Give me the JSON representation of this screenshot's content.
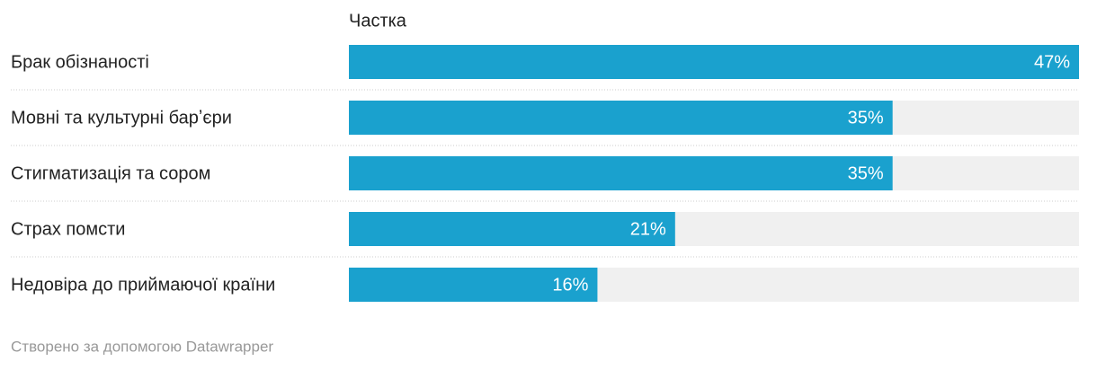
{
  "chart_data": {
    "type": "bar",
    "orientation": "horizontal",
    "column_header": "Частка",
    "categories": [
      "Брак обізнаності",
      "Мовні та культурні барʼєри",
      "Стигматизація та сором",
      "Страх помсти",
      "Недовіра до приймаючої країни"
    ],
    "values": [
      47,
      35,
      35,
      21,
      16
    ],
    "value_labels": [
      "47%",
      "35%",
      "35%",
      "21%",
      "16%"
    ],
    "color": "#1aa1ce",
    "xlim": [
      0,
      47
    ],
    "footer": "Створено за допомогою Datawrapper"
  }
}
